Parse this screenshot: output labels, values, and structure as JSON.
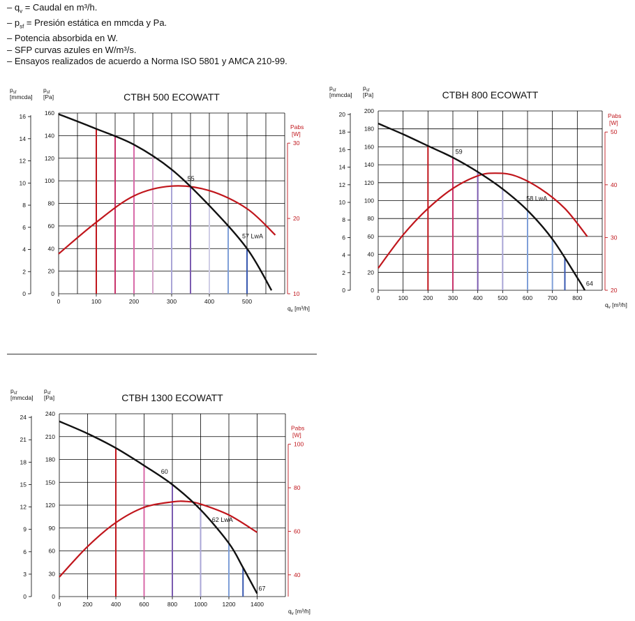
{
  "legend": {
    "prefix": "– ",
    "lines": [
      {
        "sym": "q",
        "sub": "v",
        "text": " = Caudal en m³/h."
      },
      {
        "sym": "p",
        "sub": "sf",
        "text": " = Presión estática en mmcda y Pa."
      },
      {
        "sym": "",
        "sub": "",
        "text": "Potencia absorbida en W."
      },
      {
        "sym": "",
        "sub": "",
        "text": "SFP curvas azules en W/m³/s."
      },
      {
        "sym": "",
        "sub": "",
        "text": "Ensayos realizados de acuerdo a Norma ISO 5801 y AMCA 210-99."
      }
    ]
  },
  "colors": {
    "grid": "#000000",
    "pressure_curve": "#111111",
    "power_curve": "#c0161c",
    "power_axis": "#c0161c",
    "sfp_lines": [
      "#c0161c",
      "#c8336b",
      "#d86aa8",
      "#d6a6cc",
      "#a9a5d6",
      "#7b5bb0",
      "#cfcde6",
      "#7f9fd8",
      "#3858b0",
      "#2a3f9b"
    ]
  },
  "chart_data": [
    {
      "type": "line",
      "title": "CTBH 500 ECOWATT",
      "xlabel_sym": "q",
      "xlabel_sub": "v",
      "xlabel_unit": " [m³/h]",
      "ylabel_mm_sym": "p",
      "ylabel_mm_sub": "sf",
      "ylabel_mm_unit": "[mmcda]",
      "ylabel_pa_sym": "p",
      "ylabel_pa_sub": "sf",
      "ylabel_pa_unit": "[Pa]",
      "y2label": "Pabs",
      "y2unit": "[W]",
      "xlim": [
        0,
        600
      ],
      "xticks": [
        0,
        100,
        200,
        300,
        400,
        500
      ],
      "ylim_pa": [
        0,
        160
      ],
      "yticks_pa": [
        0,
        20,
        40,
        60,
        80,
        100,
        120,
        140,
        160
      ],
      "ylim_mm": [
        0,
        16.32
      ],
      "yticks_mm": [
        0,
        2,
        4,
        6,
        8,
        10,
        12,
        14,
        16
      ],
      "y2lim": [
        10,
        34
      ],
      "y2ticks": [
        10,
        20,
        30
      ],
      "pressure_curve": [
        [
          0,
          159
        ],
        [
          100,
          146
        ],
        [
          200,
          132
        ],
        [
          300,
          110
        ],
        [
          400,
          78
        ],
        [
          500,
          40
        ],
        [
          565,
          3
        ]
      ],
      "power_curve": [
        [
          0,
          15.3
        ],
        [
          100,
          19.5
        ],
        [
          200,
          23
        ],
        [
          300,
          24.3
        ],
        [
          400,
          23.7
        ],
        [
          500,
          21.3
        ],
        [
          575,
          17.8
        ]
      ],
      "sfp_lines": [
        {
          "x": 100,
          "color_index": 0
        },
        {
          "x": 150,
          "color_index": 1
        },
        {
          "x": 200,
          "color_index": 2
        },
        {
          "x": 250,
          "color_index": 3
        },
        {
          "x": 300,
          "color_index": 4
        },
        {
          "x": 350,
          "color_index": 5
        },
        {
          "x": 400,
          "color_index": 6
        },
        {
          "x": 450,
          "color_index": 7
        },
        {
          "x": 500,
          "color_index": 8
        }
      ],
      "annotations": [
        {
          "text": "55",
          "x": 342,
          "y": 100
        },
        {
          "text": "57 LwA",
          "x": 487,
          "y": 49
        }
      ]
    },
    {
      "type": "line",
      "title": "CTBH 800 ECOWATT",
      "xlabel_sym": "q",
      "xlabel_sub": "v",
      "xlabel_unit": " [m³/h]",
      "ylabel_mm_sym": "p",
      "ylabel_mm_sub": "sf",
      "ylabel_mm_unit": "[mmcda]",
      "ylabel_pa_sym": "p",
      "ylabel_pa_sub": "sf",
      "ylabel_pa_unit": "[Pa]",
      "y2label": "Pabs",
      "y2unit": "[W]",
      "xlim": [
        0,
        900
      ],
      "xticks": [
        0,
        100,
        200,
        300,
        400,
        500,
        600,
        700,
        800
      ],
      "ylim_pa": [
        0,
        200
      ],
      "yticks_pa": [
        0,
        20,
        40,
        60,
        80,
        100,
        120,
        140,
        160,
        180,
        200
      ],
      "ylim_mm": [
        0,
        20.4
      ],
      "yticks_mm": [
        0,
        2,
        4,
        6,
        8,
        10,
        12,
        14,
        16,
        18,
        20
      ],
      "y2lim": [
        20,
        54
      ],
      "y2ticks": [
        20,
        30,
        40,
        50
      ],
      "pressure_curve": [
        [
          0,
          186
        ],
        [
          100,
          174
        ],
        [
          200,
          161
        ],
        [
          300,
          148
        ],
        [
          400,
          132
        ],
        [
          500,
          113
        ],
        [
          600,
          89
        ],
        [
          700,
          57
        ],
        [
          800,
          14
        ],
        [
          830,
          0
        ]
      ],
      "power_curve": [
        [
          0,
          24.2
        ],
        [
          100,
          30.5
        ],
        [
          200,
          35.5
        ],
        [
          300,
          39.3
        ],
        [
          400,
          41.7
        ],
        [
          470,
          42.2
        ],
        [
          550,
          41.7
        ],
        [
          650,
          39.3
        ],
        [
          750,
          35.5
        ],
        [
          840,
          30.2
        ]
      ],
      "sfp_lines": [
        {
          "x": 200,
          "color_index": 0
        },
        {
          "x": 300,
          "color_index": 1
        },
        {
          "x": 400,
          "color_index": 5
        },
        {
          "x": 500,
          "color_index": 4
        },
        {
          "x": 600,
          "color_index": 7
        },
        {
          "x": 700,
          "color_index": 7
        },
        {
          "x": 750,
          "color_index": 8
        }
      ],
      "annotations": [
        {
          "text": "59",
          "x": 310,
          "y": 152
        },
        {
          "text": "58 LwA",
          "x": 595,
          "y": 100
        },
        {
          "text": "64",
          "x": 835,
          "y": 5
        }
      ]
    },
    {
      "type": "line",
      "title": "CTBH 1300 ECOWATT",
      "xlabel_sym": "q",
      "xlabel_sub": "v",
      "xlabel_unit": " [m³/h]",
      "ylabel_mm_sym": "p",
      "ylabel_mm_sub": "sf",
      "ylabel_mm_unit": "[mmcda]",
      "ylabel_pa_sym": "p",
      "ylabel_pa_sub": "sf",
      "ylabel_pa_unit": "[Pa]",
      "y2label": "Pabs",
      "y2unit": "[W]",
      "xlim": [
        0,
        1600
      ],
      "xticks": [
        0,
        200,
        400,
        600,
        800,
        1000,
        1200,
        1400
      ],
      "ylim_pa": [
        0,
        240
      ],
      "yticks_pa": [
        0,
        30,
        60,
        90,
        120,
        150,
        180,
        210,
        240
      ],
      "ylim_mm": [
        0,
        24.48
      ],
      "yticks_mm": [
        0,
        3,
        6,
        9,
        12,
        15,
        18,
        21,
        24
      ],
      "y2lim": [
        30,
        114
      ],
      "y2ticks": [
        40,
        60,
        80,
        100
      ],
      "pressure_curve": [
        [
          0,
          230
        ],
        [
          200,
          214
        ],
        [
          400,
          195
        ],
        [
          600,
          172
        ],
        [
          800,
          147
        ],
        [
          1000,
          114
        ],
        [
          1200,
          70
        ],
        [
          1300,
          38
        ],
        [
          1400,
          4
        ]
      ],
      "power_curve": [
        [
          0,
          39
        ],
        [
          200,
          53
        ],
        [
          400,
          64
        ],
        [
          600,
          71
        ],
        [
          800,
          73.5
        ],
        [
          900,
          73.7
        ],
        [
          1000,
          72.5
        ],
        [
          1200,
          67.5
        ],
        [
          1400,
          59.5
        ]
      ],
      "sfp_lines": [
        {
          "x": 400,
          "color_index": 0
        },
        {
          "x": 600,
          "color_index": 2
        },
        {
          "x": 800,
          "color_index": 5
        },
        {
          "x": 1000,
          "color_index": 4
        },
        {
          "x": 1200,
          "color_index": 7
        },
        {
          "x": 1300,
          "color_index": 8
        }
      ],
      "annotations": [
        {
          "text": "60",
          "x": 720,
          "y": 161
        },
        {
          "text": "62 LwA",
          "x": 1080,
          "y": 98
        },
        {
          "text": "67",
          "x": 1410,
          "y": 8
        }
      ]
    }
  ]
}
